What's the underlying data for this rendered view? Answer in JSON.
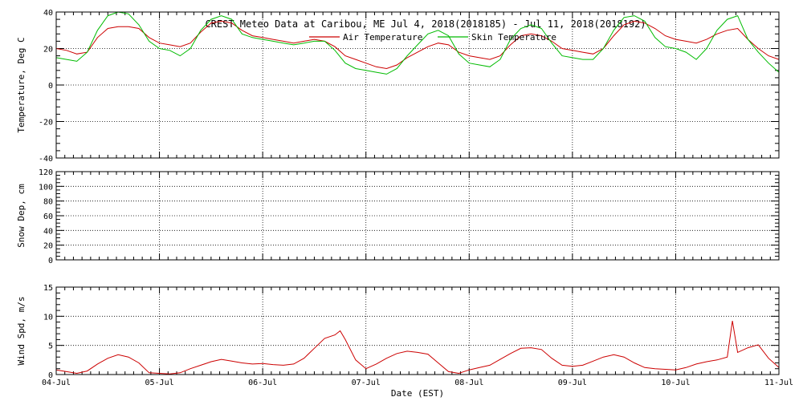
{
  "title": "CREST Meteo Data at Caribou, ME   Jul  4, 2018(2018185) - Jul 11, 2018(2018192)",
  "xlabel": "Date (EST)",
  "colors": {
    "air": "#cc0000",
    "skin": "#00bb00",
    "wind": "#cc0000"
  },
  "chart_data": [
    {
      "type": "line",
      "id": "temperature",
      "ylabel": "Temperature, Deg C",
      "xlim": [
        0,
        7
      ],
      "ylim": [
        -40,
        40
      ],
      "yticks": [
        -40,
        -20,
        0,
        20,
        40
      ],
      "x_tick_labels": [
        "04-Jul",
        "05-Jul",
        "06-Jul",
        "07-Jul",
        "08-Jul",
        "09-Jul",
        "10-Jul",
        "11-Jul"
      ],
      "legend_placement": "top",
      "grid": true,
      "series": [
        {
          "name": "Air Temperature",
          "color": "#cc0000",
          "x": [
            0,
            0.1,
            0.2,
            0.3,
            0.4,
            0.5,
            0.6,
            0.7,
            0.8,
            0.9,
            1.0,
            1.1,
            1.2,
            1.3,
            1.4,
            1.5,
            1.6,
            1.7,
            1.8,
            1.9,
            2.0,
            2.1,
            2.2,
            2.3,
            2.4,
            2.5,
            2.6,
            2.7,
            2.8,
            2.9,
            3.0,
            3.1,
            3.2,
            3.3,
            3.4,
            3.5,
            3.6,
            3.7,
            3.8,
            3.9,
            4.0,
            4.1,
            4.2,
            4.3,
            4.4,
            4.5,
            4.6,
            4.7,
            4.8,
            4.9,
            5.0,
            5.1,
            5.2,
            5.3,
            5.4,
            5.5,
            5.6,
            5.7,
            5.8,
            5.9,
            6.0,
            6.1,
            6.2,
            6.3,
            6.4,
            6.5,
            6.6,
            6.7,
            6.8,
            6.9,
            7.0
          ],
          "y": [
            20,
            19,
            17,
            18,
            26,
            31,
            32,
            32,
            31,
            26,
            23,
            22,
            21,
            23,
            29,
            34,
            35,
            34,
            30,
            27,
            26,
            25,
            24,
            23,
            24,
            25,
            24,
            21,
            16,
            14,
            12,
            10,
            9,
            11,
            15,
            18,
            21,
            23,
            22,
            18,
            16,
            15,
            14,
            16,
            22,
            27,
            28,
            27,
            24,
            20,
            19,
            18,
            17,
            20,
            27,
            33,
            35,
            34,
            31,
            27,
            25,
            24,
            23,
            25,
            28,
            30,
            31,
            25,
            20,
            16,
            14
          ]
        },
        {
          "name": "Skin Temperature",
          "color": "#00bb00",
          "x": [
            0,
            0.1,
            0.2,
            0.3,
            0.4,
            0.5,
            0.6,
            0.7,
            0.8,
            0.9,
            1.0,
            1.1,
            1.2,
            1.3,
            1.4,
            1.5,
            1.6,
            1.7,
            1.8,
            1.9,
            2.0,
            2.1,
            2.2,
            2.3,
            2.4,
            2.5,
            2.6,
            2.7,
            2.8,
            2.9,
            3.0,
            3.1,
            3.2,
            3.3,
            3.4,
            3.5,
            3.6,
            3.7,
            3.8,
            3.9,
            4.0,
            4.1,
            4.2,
            4.3,
            4.4,
            4.5,
            4.6,
            4.7,
            4.8,
            4.9,
            5.0,
            5.1,
            5.2,
            5.3,
            5.4,
            5.5,
            5.6,
            5.7,
            5.8,
            5.9,
            6.0,
            6.1,
            6.2,
            6.3,
            6.4,
            6.5,
            6.6,
            6.7,
            6.8,
            6.9,
            7.0
          ],
          "y": [
            15,
            14,
            13,
            18,
            30,
            38,
            40,
            39,
            33,
            24,
            20,
            19,
            16,
            20,
            30,
            36,
            38,
            36,
            28,
            26,
            25,
            24,
            23,
            22,
            23,
            24,
            24,
            19,
            12,
            9,
            8,
            7,
            6,
            9,
            16,
            22,
            28,
            30,
            27,
            17,
            12,
            11,
            10,
            14,
            25,
            31,
            33,
            31,
            23,
            16,
            15,
            14,
            14,
            20,
            30,
            37,
            38,
            35,
            26,
            21,
            20,
            18,
            14,
            20,
            30,
            36,
            38,
            25,
            18,
            12,
            7
          ]
        }
      ]
    },
    {
      "type": "line",
      "id": "snow",
      "ylabel": "Snow Dep, cm",
      "xlim": [
        0,
        7
      ],
      "ylim": [
        0,
        120
      ],
      "yticks": [
        0,
        20,
        40,
        60,
        80,
        100,
        120
      ],
      "grid": true,
      "series": []
    },
    {
      "type": "line",
      "id": "wind",
      "ylabel": "Wind Spd, m/s",
      "xlim": [
        0,
        7
      ],
      "ylim": [
        0,
        15
      ],
      "yticks": [
        0,
        5,
        10,
        15
      ],
      "grid": true,
      "series": [
        {
          "name": "Wind Speed",
          "color": "#cc0000",
          "x": [
            0,
            0.1,
            0.2,
            0.3,
            0.4,
            0.5,
            0.6,
            0.7,
            0.8,
            0.9,
            1.0,
            1.1,
            1.2,
            1.3,
            1.4,
            1.5,
            1.6,
            1.7,
            1.8,
            1.9,
            2.0,
            2.1,
            2.2,
            2.3,
            2.4,
            2.5,
            2.6,
            2.7,
            2.75,
            2.8,
            2.9,
            3.0,
            3.1,
            3.2,
            3.3,
            3.4,
            3.5,
            3.6,
            3.7,
            3.8,
            3.9,
            4.0,
            4.1,
            4.2,
            4.3,
            4.4,
            4.5,
            4.6,
            4.7,
            4.8,
            4.9,
            5.0,
            5.1,
            5.2,
            5.3,
            5.4,
            5.5,
            5.6,
            5.7,
            5.8,
            5.9,
            6.0,
            6.1,
            6.2,
            6.3,
            6.4,
            6.5,
            6.55,
            6.6,
            6.7,
            6.8,
            6.9,
            7.0
          ],
          "y": [
            0.8,
            0.5,
            0.2,
            0.6,
            1.8,
            2.8,
            3.4,
            3.0,
            2.0,
            0.3,
            0.2,
            0.1,
            0.3,
            1.0,
            1.6,
            2.2,
            2.6,
            2.3,
            2.0,
            1.8,
            1.9,
            1.7,
            1.6,
            1.8,
            2.8,
            4.5,
            6.2,
            6.8,
            7.5,
            6.0,
            2.5,
            1.0,
            1.8,
            2.8,
            3.6,
            4.0,
            3.8,
            3.5,
            2.0,
            0.5,
            0.2,
            0.8,
            1.2,
            1.6,
            2.6,
            3.6,
            4.5,
            4.6,
            4.3,
            2.8,
            1.6,
            1.4,
            1.6,
            2.3,
            3.0,
            3.4,
            3.0,
            2.0,
            1.2,
            1.0,
            0.9,
            0.8,
            1.2,
            1.8,
            2.2,
            2.5,
            3.0,
            9.2,
            3.8,
            4.6,
            5.1,
            2.8,
            1.2
          ]
        }
      ]
    }
  ]
}
